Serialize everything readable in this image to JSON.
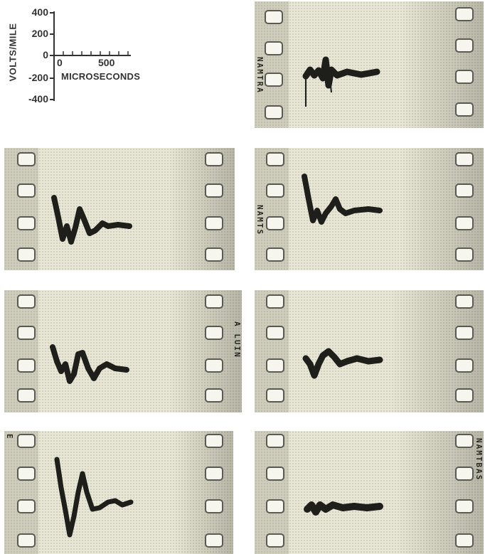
{
  "legend": {
    "y_label": "VOLTS/MILE",
    "y_ticks": [
      "400",
      "200",
      "0",
      "-200",
      "-400"
    ],
    "x_ticks": [
      "0",
      "500"
    ],
    "x_label": "MICROSECONDS"
  },
  "frames": [
    {
      "id": "f1",
      "film_mark": "NAMTRA"
    },
    {
      "id": "f2",
      "film_mark": ""
    },
    {
      "id": "f3",
      "film_mark": "NAMTS"
    },
    {
      "id": "f4",
      "film_mark": "A LUIN"
    },
    {
      "id": "f5",
      "film_mark": ""
    },
    {
      "id": "f6",
      "film_mark": "E"
    },
    {
      "id": "f7",
      "film_mark": "NAMTBAS"
    }
  ],
  "colors": {
    "film": "#e9e8d6",
    "trace": "#1e1e1a",
    "hole_border": "#5a5a52"
  }
}
